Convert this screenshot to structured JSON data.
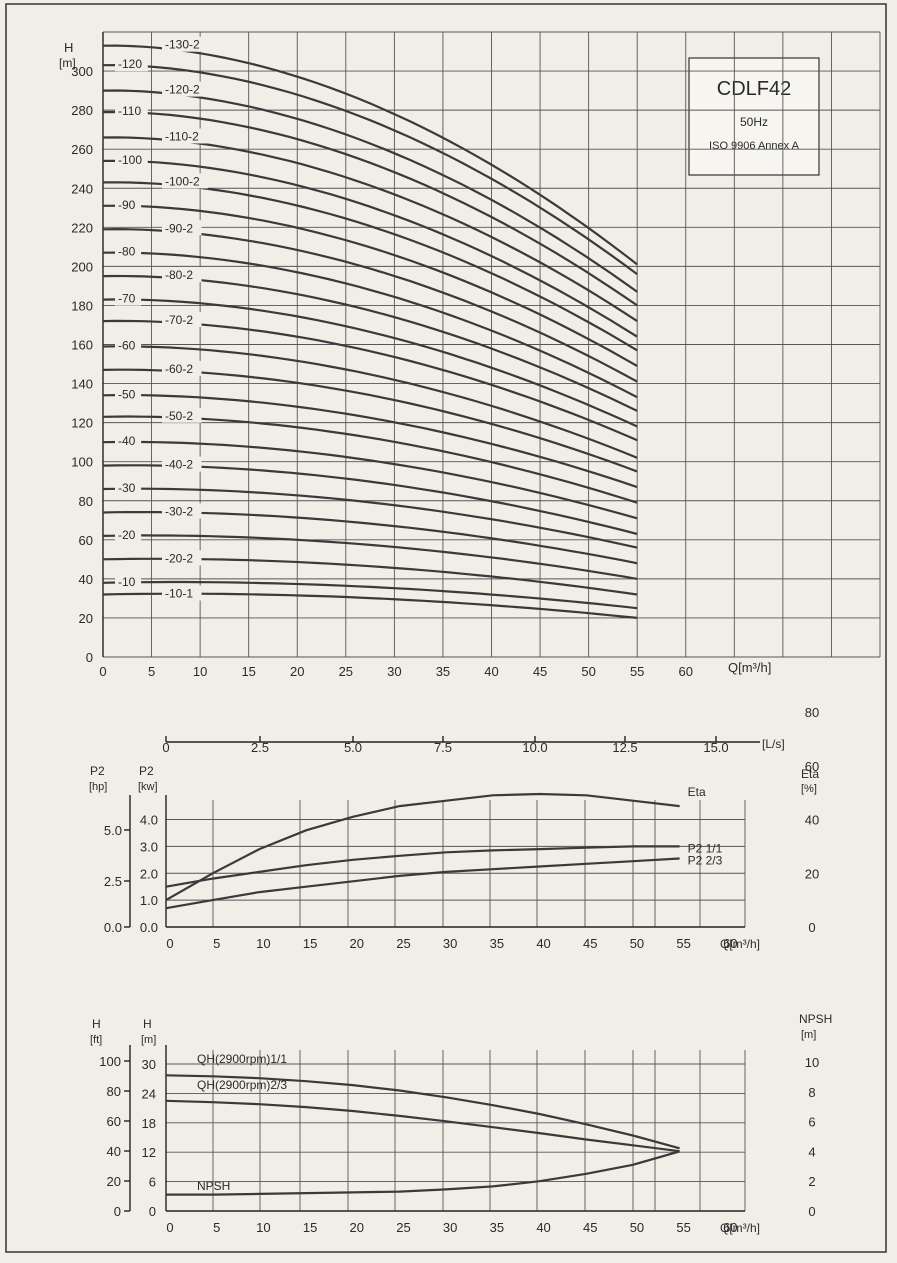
{
  "legend_box": {
    "model": "CDLF42",
    "frequency": "50Hz",
    "standard": "ISO 9906 Annex A"
  },
  "chart_data": [
    {
      "type": "line",
      "ylabel": "H",
      "yunit": "[m]",
      "xlabel": "Q[m³/h]",
      "xlim": [
        0,
        80
      ],
      "ylim": [
        0,
        320
      ],
      "x_ticks": [
        0,
        5,
        10,
        15,
        20,
        25,
        30,
        35,
        40,
        45,
        50,
        55,
        60
      ],
      "y_ticks": [
        0,
        20,
        40,
        60,
        80,
        100,
        120,
        140,
        160,
        180,
        200,
        220,
        240,
        260,
        280,
        300
      ],
      "series": [
        {
          "name": "-130-2",
          "x": [
            0,
            55
          ],
          "y": [
            313,
            201
          ]
        },
        {
          "name": "-120",
          "x": [
            0,
            55
          ],
          "y": [
            303,
            196
          ]
        },
        {
          "name": "-120-2",
          "x": [
            0,
            55
          ],
          "y": [
            290,
            187
          ]
        },
        {
          "name": "-110",
          "x": [
            0,
            55
          ],
          "y": [
            279,
            180
          ]
        },
        {
          "name": "-110-2",
          "x": [
            0,
            55
          ],
          "y": [
            266,
            172
          ]
        },
        {
          "name": "-100",
          "x": [
            0,
            55
          ],
          "y": [
            254,
            164
          ]
        },
        {
          "name": "-100-2",
          "x": [
            0,
            55
          ],
          "y": [
            243,
            157
          ]
        },
        {
          "name": "-90",
          "x": [
            0,
            55
          ],
          "y": [
            231,
            149
          ]
        },
        {
          "name": "-90-2",
          "x": [
            0,
            55
          ],
          "y": [
            219,
            141
          ]
        },
        {
          "name": "-80",
          "x": [
            0,
            55
          ],
          "y": [
            207,
            133
          ]
        },
        {
          "name": "-80-2",
          "x": [
            0,
            55
          ],
          "y": [
            195,
            126
          ]
        },
        {
          "name": "-70",
          "x": [
            0,
            55
          ],
          "y": [
            183,
            118
          ]
        },
        {
          "name": "-70-2",
          "x": [
            0,
            55
          ],
          "y": [
            172,
            111
          ]
        },
        {
          "name": "-60",
          "x": [
            0,
            55
          ],
          "y": [
            159,
            102
          ]
        },
        {
          "name": "-60-2",
          "x": [
            0,
            55
          ],
          "y": [
            147,
            95
          ]
        },
        {
          "name": "-50",
          "x": [
            0,
            55
          ],
          "y": [
            134,
            87
          ]
        },
        {
          "name": "-50-2",
          "x": [
            0,
            55
          ],
          "y": [
            123,
            79
          ]
        },
        {
          "name": "-40",
          "x": [
            0,
            55
          ],
          "y": [
            110,
            71
          ]
        },
        {
          "name": "-40-2",
          "x": [
            0,
            55
          ],
          "y": [
            98,
            63
          ]
        },
        {
          "name": "-30",
          "x": [
            0,
            55
          ],
          "y": [
            86,
            56
          ]
        },
        {
          "name": "-30-2",
          "x": [
            0,
            55
          ],
          "y": [
            74,
            48
          ]
        },
        {
          "name": "-20",
          "x": [
            0,
            55
          ],
          "y": [
            62,
            40
          ]
        },
        {
          "name": "-20-2",
          "x": [
            0,
            55
          ],
          "y": [
            50,
            32
          ]
        },
        {
          "name": "-10",
          "x": [
            0,
            55
          ],
          "y": [
            38,
            25
          ]
        },
        {
          "name": "-10-1",
          "x": [
            0,
            55
          ],
          "y": [
            32,
            20
          ]
        }
      ]
    },
    {
      "type": "line",
      "xlabel": "Q[m³/h]",
      "xlim": [
        0,
        62
      ],
      "x_ticks": [
        0,
        5,
        10,
        15,
        20,
        25,
        30,
        35,
        40,
        45,
        50,
        55,
        60
      ],
      "secondary_x": {
        "label": "[L/s]",
        "ticks": [
          "0",
          "2.5",
          "5.0",
          "7.5",
          "10.0",
          "12.5",
          "15.0"
        ]
      },
      "left_axes": [
        {
          "label": "P2",
          "unit": "[hp]",
          "ticks": [
            "0.0",
            "2.5",
            "5.0"
          ]
        },
        {
          "label": "P2",
          "unit": "[kw]",
          "ticks": [
            "0.0",
            "1.0",
            "2.0",
            "3.0",
            "4.0"
          ]
        }
      ],
      "right_axis": {
        "label": "Eta",
        "unit": "[%]",
        "ticks": [
          "0",
          "20",
          "40",
          "60",
          "80"
        ]
      },
      "ylim_kw": [
        0,
        4.5
      ],
      "ylim_pct": [
        0,
        90
      ],
      "series": [
        {
          "name": "Eta",
          "axis": "pct",
          "x": [
            0,
            5,
            10,
            15,
            20,
            25,
            30,
            35,
            40,
            45,
            50,
            55
          ],
          "y": [
            10,
            20,
            29,
            36,
            41,
            45,
            47,
            49,
            49.5,
            49,
            47,
            45
          ]
        },
        {
          "name": "P2 1/1",
          "axis": "kw",
          "x": [
            0,
            5,
            10,
            15,
            20,
            25,
            30,
            35,
            40,
            45,
            50,
            55
          ],
          "y": [
            1.5,
            1.8,
            2.05,
            2.3,
            2.5,
            2.65,
            2.78,
            2.85,
            2.9,
            2.95,
            3.0,
            3.0
          ]
        },
        {
          "name": "P2 2/3",
          "axis": "kw",
          "x": [
            0,
            5,
            10,
            15,
            20,
            25,
            30,
            35,
            40,
            45,
            50,
            55
          ],
          "y": [
            0.7,
            1.0,
            1.3,
            1.5,
            1.7,
            1.9,
            2.05,
            2.15,
            2.25,
            2.35,
            2.45,
            2.55
          ]
        }
      ]
    },
    {
      "type": "line",
      "xlabel": "Q[m³/h]",
      "xlim": [
        0,
        62
      ],
      "x_ticks": [
        0,
        5,
        10,
        15,
        20,
        25,
        30,
        35,
        40,
        45,
        50,
        55,
        60
      ],
      "left_axes": [
        {
          "label": "H",
          "unit": "[ft]",
          "ticks": [
            "0",
            "20",
            "40",
            "60",
            "80",
            "100"
          ]
        },
        {
          "label": "H",
          "unit": "[m]",
          "ticks": [
            "0",
            "6",
            "12",
            "18",
            "24",
            "30"
          ]
        }
      ],
      "right_axis": {
        "label": "NPSH",
        "unit": "[m]",
        "ticks": [
          "0",
          "2",
          "4",
          "6",
          "8",
          "10"
        ]
      },
      "ylim_m": [
        0,
        34
      ],
      "series": [
        {
          "name": "QH(2900rpm)1/1",
          "axis": "m",
          "x": [
            0,
            5,
            10,
            15,
            20,
            25,
            30,
            35,
            40,
            45,
            50,
            55
          ],
          "y": [
            27.7,
            27.5,
            27.1,
            26.5,
            25.7,
            24.6,
            23.2,
            21.6,
            19.8,
            17.7,
            15.4,
            12.8
          ]
        },
        {
          "name": "QH(2900rpm)2/3",
          "axis": "m",
          "x": [
            0,
            5,
            10,
            15,
            20,
            25,
            30,
            35,
            40,
            45,
            50,
            55
          ],
          "y": [
            22.5,
            22.2,
            21.8,
            21.2,
            20.4,
            19.4,
            18.3,
            17.1,
            15.9,
            14.6,
            13.4,
            12.2
          ]
        },
        {
          "name": "NPSH",
          "axis": "npsh",
          "x": [
            0,
            5,
            10,
            15,
            20,
            25,
            30,
            35,
            40,
            45,
            50,
            55
          ],
          "y": [
            1.1,
            1.1,
            1.15,
            1.2,
            1.25,
            1.3,
            1.45,
            1.65,
            2.0,
            2.5,
            3.1,
            4.0
          ]
        }
      ]
    }
  ]
}
